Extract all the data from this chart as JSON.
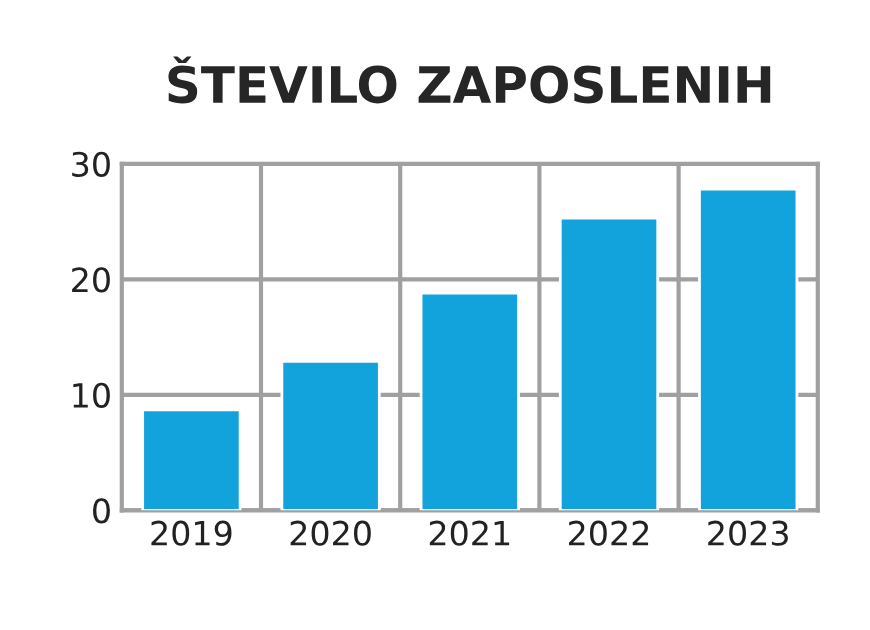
{
  "chart_data": {
    "type": "bar",
    "title": "ŠTEVILO ZAPOSLENIH",
    "categories": [
      "2019",
      "2020",
      "2021",
      "2022",
      "2023"
    ],
    "values": [
      8.7,
      12.9,
      18.8,
      25.3,
      27.8
    ],
    "color": "#12a3dc",
    "ylim": [
      0,
      30
    ],
    "yticks": [
      0,
      10,
      20,
      30
    ],
    "grid": true
  }
}
